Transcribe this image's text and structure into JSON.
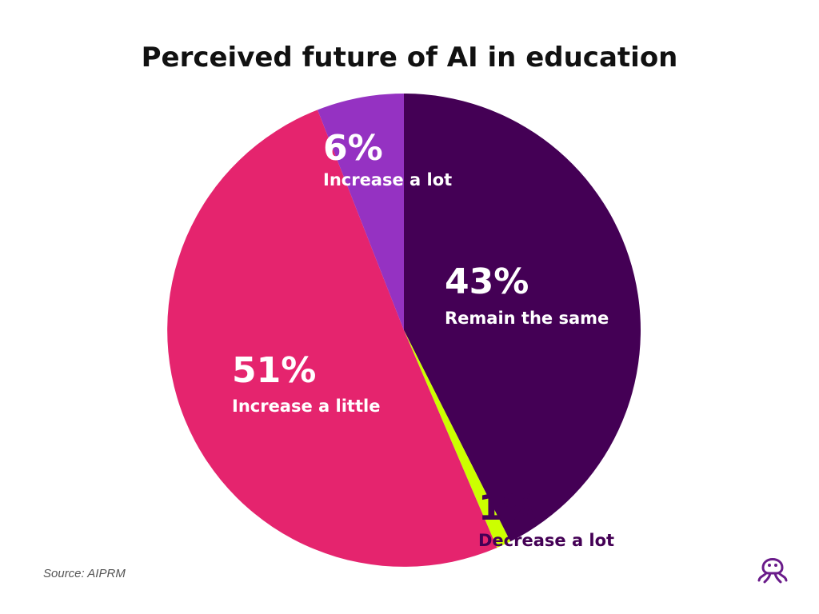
{
  "title": "Perceived future of AI in education",
  "source": "Source: AIPRM",
  "chart_data": {
    "type": "pie",
    "title": "Perceived future of AI in education",
    "start_angle_deg": 0,
    "direction": "clockwise",
    "slices": [
      {
        "label": "Remain the same",
        "percent_label": "43%",
        "value": 43,
        "color": "#440055",
        "text_color": "#ffffff"
      },
      {
        "label": "Decrease a lot",
        "percent_label": "1%",
        "value": 1,
        "color": "#ccff00",
        "text_color": "#440055"
      },
      {
        "label": "Increase a little",
        "percent_label": "51%",
        "value": 51,
        "color": "#e5246e",
        "text_color": "#ffffff"
      },
      {
        "label": "Increase a lot",
        "percent_label": "6%",
        "value": 6,
        "color": "#9532c2",
        "text_color": "#ffffff"
      }
    ]
  },
  "logo_icon": "octopus-logo-icon"
}
